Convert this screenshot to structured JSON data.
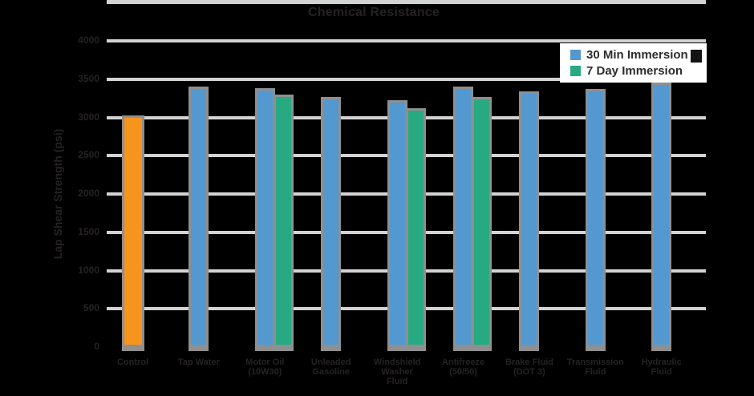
{
  "title": "Chemical Resistance",
  "legend": {
    "items": [
      {
        "label": "30 Min Immersion",
        "color": "#5498d0"
      },
      {
        "label": "7 Day Immersion",
        "color": "#27aa82"
      }
    ]
  },
  "chart_data": {
    "type": "bar",
    "title": "Chemical Resistance",
    "xlabel": "",
    "ylabel": "Lap Shear Strength (psi)",
    "ylim": [
      0,
      4000
    ],
    "yticks": [
      0,
      500,
      1000,
      1500,
      2000,
      2500,
      3000,
      3500,
      4000
    ],
    "grid": true,
    "legend_position": "top-right",
    "categories": [
      [
        "Control"
      ],
      [
        "Tap Water"
      ],
      [
        "Motor Oil",
        "(10W30)"
      ],
      [
        "Unleaded",
        "Gasoline"
      ],
      [
        "Windshield",
        "Washer",
        "Fluid"
      ],
      [
        "Antifreeze",
        "(50/50)"
      ],
      [
        "Brake Fluid",
        "(DOT 3)"
      ],
      [
        "Transmission",
        "Fluid"
      ],
      [
        "Hydraulic",
        "Fluid"
      ]
    ],
    "series": [
      {
        "name": "Control",
        "color": "#f7941e",
        "in_legend": false,
        "values": [
          3000,
          null,
          null,
          null,
          null,
          null,
          null,
          null,
          null
        ]
      },
      {
        "name": "30 Min Immersion",
        "color": "#5498d0",
        "in_legend": true,
        "values": [
          null,
          3370,
          3350,
          3240,
          3190,
          3370,
          3310,
          3340,
          3420
        ]
      },
      {
        "name": "7 Day Immersion",
        "color": "#27aa82",
        "in_legend": true,
        "values": [
          null,
          null,
          3270,
          null,
          3090,
          3240,
          null,
          null,
          null
        ]
      }
    ],
    "colors": {
      "gridline": "#d3d3d3",
      "bar_outline": "#8f8f8f",
      "text": "#262223",
      "background": "#000000",
      "legend_background": "#ffffff"
    }
  }
}
